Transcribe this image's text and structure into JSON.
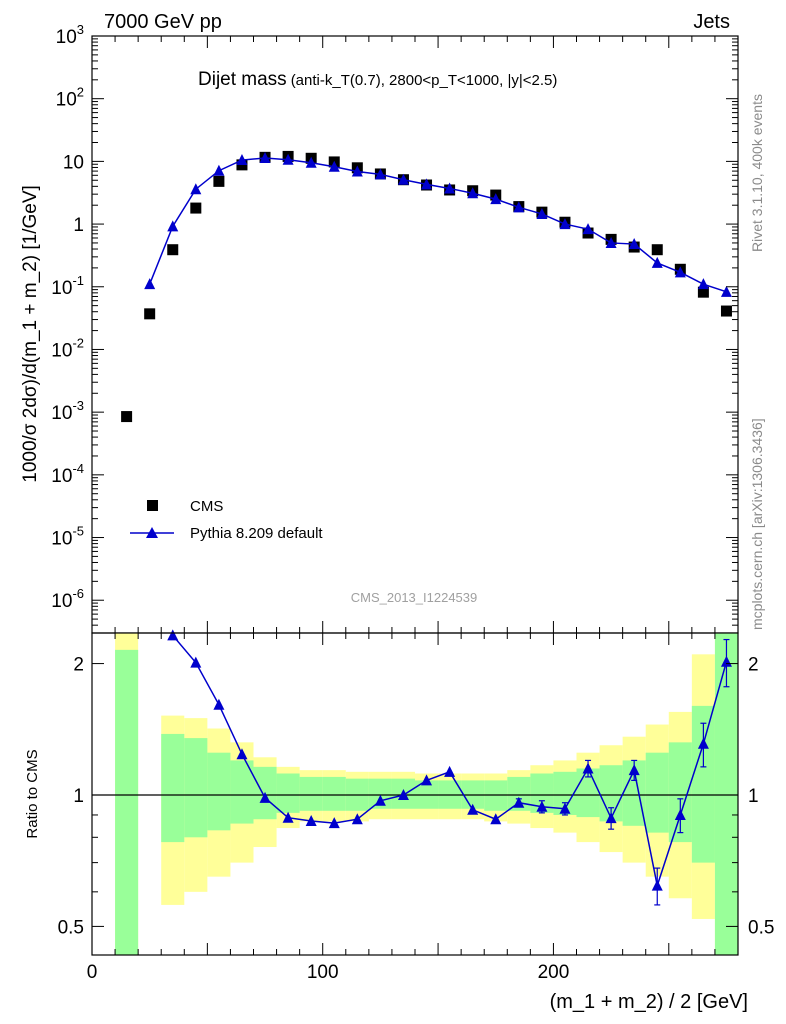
{
  "header": {
    "left": "7000 GeV pp",
    "right": "Jets"
  },
  "side_labels": {
    "rivet": "Rivet 3.1.10,  400k events",
    "mcplots": "mcplots.cern.ch [arXiv:1306.3436]"
  },
  "chart_data": [
    {
      "type": "scatter",
      "title": "Dijet mass",
      "subtitle": "(anti-k_T(0.7), 2800<p_T<1000, |y|<2.5)",
      "watermark": "CMS_2013_I1224539",
      "xlabel": "(m_1 + m_2) / 2 [GeV]",
      "ylabel": "1000/σ 2dσ)/d(m_1 + m_2) [1/GeV]",
      "yscale": "log",
      "xlim": [
        0,
        280
      ],
      "ylim": [
        3e-07,
        1000
      ],
      "x_ticks": [
        "0",
        "100",
        "200"
      ],
      "y_ticks": [
        "10^-6",
        "10^-5",
        "10^-4",
        "10^-3",
        "10^-2",
        "10^-1",
        "1",
        "10",
        "10^2",
        "10^3"
      ],
      "legend_position": "bottom-left",
      "series": [
        {
          "name": "CMS",
          "marker": "square",
          "color": "#000000",
          "x": [
            15,
            25,
            35,
            45,
            55,
            65,
            75,
            85,
            95,
            105,
            115,
            125,
            135,
            145,
            155,
            165,
            175,
            185,
            195,
            205,
            215,
            225,
            235,
            245,
            255,
            265,
            275
          ],
          "y": [
            0.00085,
            0.037,
            0.39,
            1.8,
            4.8,
            8.8,
            11.6,
            12.0,
            11.2,
            9.8,
            7.9,
            6.3,
            5.1,
            4.2,
            3.5,
            3.4,
            2.9,
            1.9,
            1.55,
            1.07,
            0.72,
            0.57,
            0.43,
            0.39,
            0.19,
            0.082,
            0.041
          ]
        },
        {
          "name": "Pythia 8.209 default",
          "marker": "triangle",
          "color": "#0000cc",
          "x": [
            25,
            35,
            45,
            55,
            65,
            75,
            85,
            95,
            105,
            115,
            125,
            135,
            145,
            155,
            165,
            175,
            185,
            195,
            205,
            215,
            225,
            235,
            245,
            255,
            265,
            275
          ],
          "y": [
            0.11,
            0.92,
            3.6,
            7.1,
            10.5,
            11.3,
            10.6,
            9.5,
            8.2,
            6.9,
            6.2,
            5.1,
            4.3,
            3.7,
            3.1,
            2.5,
            1.85,
            1.45,
            1.0,
            0.83,
            0.5,
            0.48,
            0.24,
            0.17,
            0.11,
            0.083
          ]
        }
      ]
    },
    {
      "type": "line",
      "ylabel": "Ratio to CMS",
      "xlabel": "(m_1 + m_2) / 2 [GeV]",
      "yscale": "log",
      "xlim": [
        0,
        280
      ],
      "ylim": [
        0.43,
        2.35
      ],
      "y_ticks": [
        "0.5",
        "1",
        "2"
      ],
      "reference_line": 1,
      "bands": {
        "edges": [
          10,
          20,
          30,
          40,
          50,
          60,
          70,
          80,
          90,
          100,
          110,
          120,
          130,
          140,
          150,
          160,
          170,
          180,
          190,
          200,
          210,
          220,
          230,
          240,
          250,
          260,
          270,
          280
        ],
        "green_low": [
          0.43,
          0.43,
          0.78,
          0.8,
          0.83,
          0.86,
          0.88,
          0.91,
          0.92,
          0.92,
          0.92,
          0.93,
          0.93,
          0.93,
          0.93,
          0.93,
          0.92,
          0.92,
          0.91,
          0.9,
          0.89,
          0.87,
          0.85,
          0.82,
          0.78,
          0.7,
          0.43
        ],
        "green_high": [
          2.15,
          0.43,
          1.38,
          1.35,
          1.25,
          1.2,
          1.16,
          1.12,
          1.1,
          1.1,
          1.09,
          1.09,
          1.09,
          1.08,
          1.08,
          1.08,
          1.08,
          1.1,
          1.12,
          1.13,
          1.15,
          1.17,
          1.2,
          1.25,
          1.32,
          1.6,
          2.5
        ],
        "yellow_low": [
          0.43,
          0.43,
          0.56,
          0.6,
          0.65,
          0.7,
          0.76,
          0.84,
          0.87,
          0.87,
          0.87,
          0.88,
          0.88,
          0.88,
          0.88,
          0.88,
          0.87,
          0.86,
          0.84,
          0.82,
          0.78,
          0.74,
          0.7,
          0.65,
          0.58,
          0.52,
          0.43
        ],
        "yellow_high": [
          2.5,
          0.43,
          1.52,
          1.5,
          1.42,
          1.32,
          1.22,
          1.16,
          1.14,
          1.14,
          1.13,
          1.13,
          1.13,
          1.12,
          1.12,
          1.12,
          1.12,
          1.14,
          1.17,
          1.2,
          1.25,
          1.3,
          1.36,
          1.45,
          1.55,
          2.1,
          2.5
        ]
      },
      "series": [
        {
          "name": "Pythia 8.209 default",
          "color": "#0000cc",
          "x": [
            35,
            45,
            55,
            65,
            75,
            85,
            95,
            105,
            115,
            125,
            135,
            145,
            155,
            165,
            175,
            185,
            195,
            205,
            215,
            225,
            235,
            245,
            255,
            265,
            275
          ],
          "y": [
            2.32,
            2.01,
            1.61,
            1.24,
            0.985,
            0.887,
            0.872,
            0.862,
            0.88,
            0.97,
            1.0,
            1.08,
            1.13,
            0.925,
            0.88,
            0.96,
            0.94,
            0.93,
            1.15,
            0.885,
            1.14,
            0.62,
            0.9,
            1.31,
            2.02
          ],
          "err": [
            0.01,
            0.01,
            0.01,
            0.01,
            0.01,
            0.01,
            0.01,
            0.01,
            0.01,
            0.01,
            0.01,
            0.01,
            0.01,
            0.01,
            0.01,
            0.02,
            0.03,
            0.03,
            0.05,
            0.05,
            0.06,
            0.06,
            0.08,
            0.15,
            0.25
          ]
        }
      ]
    }
  ]
}
